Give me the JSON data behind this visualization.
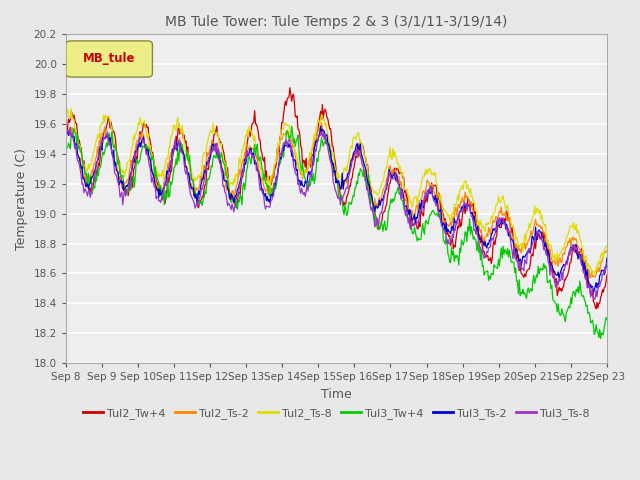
{
  "title": "MB Tule Tower: Tule Temps 2 & 3 (3/1/11-3/19/14)",
  "xlabel": "Time",
  "ylabel": "Temperature (C)",
  "ylim": [
    18.0,
    20.2
  ],
  "yticks": [
    18.0,
    18.2,
    18.4,
    18.6,
    18.8,
    19.0,
    19.2,
    19.4,
    19.6,
    19.8,
    20.0,
    20.2
  ],
  "x_labels": [
    "Sep 8",
    "Sep 9",
    "Sep 10",
    "Sep 11",
    "Sep 12",
    "Sep 13",
    "Sep 14",
    "Sep 15",
    "Sep 16",
    "Sep 17",
    "Sep 18",
    "Sep 19",
    "Sep 20",
    "Sep 21",
    "Sep 22",
    "Sep 23"
  ],
  "series_colors": [
    "#cc0000",
    "#ff8800",
    "#dddd00",
    "#00cc00",
    "#0000cc",
    "#9933cc"
  ],
  "series_names": [
    "Tul2_Tw+4",
    "Tul2_Ts-2",
    "Tul2_Ts-8",
    "Tul3_Tw+4",
    "Tul3_Ts-2",
    "Tul3_Ts-8"
  ],
  "legend_box_color": "#eeee88",
  "legend_box_edge_color": "#888844",
  "legend_box_text": "MB_tule",
  "legend_box_text_color": "#cc0000",
  "background_color": "#e8e8e8",
  "plot_bg_color": "#eeeeee",
  "grid_color": "#ffffff",
  "title_color": "#555555",
  "label_color": "#555555",
  "tick_color": "#555555"
}
